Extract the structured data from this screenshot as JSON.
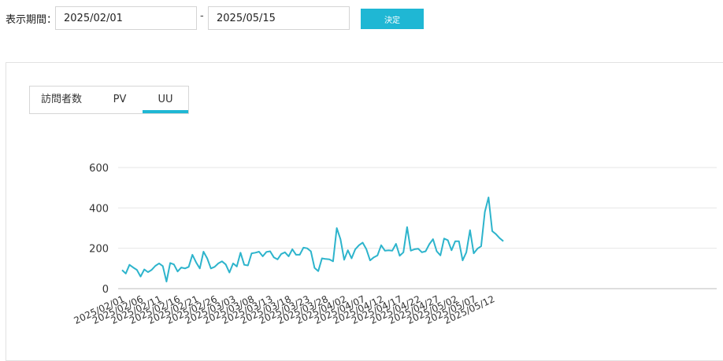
{
  "filter": {
    "label": "表示期間：",
    "start_date": "2025/02/01",
    "separator": "-",
    "end_date": "2025/05/15",
    "submit_label": "決定"
  },
  "tabs": [
    {
      "label": "訪問者数",
      "active": false
    },
    {
      "label": "PV",
      "active": false
    },
    {
      "label": "UU",
      "active": true
    }
  ],
  "colors": {
    "accent": "#1fb7d4",
    "line": "#2db4cc",
    "grid": "#e6e6e6"
  },
  "chart_data": {
    "type": "line",
    "ylim": [
      0,
      600
    ],
    "yticks": [
      0,
      200,
      400,
      600
    ],
    "xtick_labels": [
      "2025/02/01",
      "2025/02/06",
      "2025/02/11",
      "2025/02/16",
      "2025/02/21",
      "2025/02/26",
      "2025/03/03",
      "2025/03/08",
      "2025/03/13",
      "2025/03/18",
      "2025/03/23",
      "2025/03/28",
      "2025/04/02",
      "2025/04/07",
      "2025/04/12",
      "2025/04/17",
      "2025/04/22",
      "2025/04/27",
      "2025/05/02",
      "2025/05/07",
      "2025/05/12"
    ],
    "grid": true,
    "legend": "none",
    "series": [
      {
        "values": [
          92,
          75,
          118,
          105,
          93,
          60,
          95,
          82,
          93,
          113,
          125,
          112,
          35,
          127,
          120,
          85,
          105,
          100,
          108,
          168,
          130,
          100,
          183,
          150,
          100,
          108,
          125,
          135,
          120,
          80,
          125,
          110,
          178,
          118,
          115,
          175,
          178,
          183,
          160,
          182,
          185,
          155,
          145,
          172,
          180,
          160,
          195,
          168,
          168,
          203,
          200,
          185,
          103,
          87,
          150,
          147,
          145,
          135,
          300,
          245,
          143,
          190,
          150,
          195,
          215,
          228,
          195,
          140,
          155,
          165,
          215,
          188,
          190,
          188,
          222,
          163,
          180,
          305,
          188,
          195,
          198,
          180,
          185,
          220,
          245,
          185,
          165,
          248,
          240,
          190,
          235,
          235,
          140,
          180,
          290,
          175,
          198,
          210,
          380,
          452,
          285,
          270,
          250,
          235
        ]
      }
    ]
  }
}
